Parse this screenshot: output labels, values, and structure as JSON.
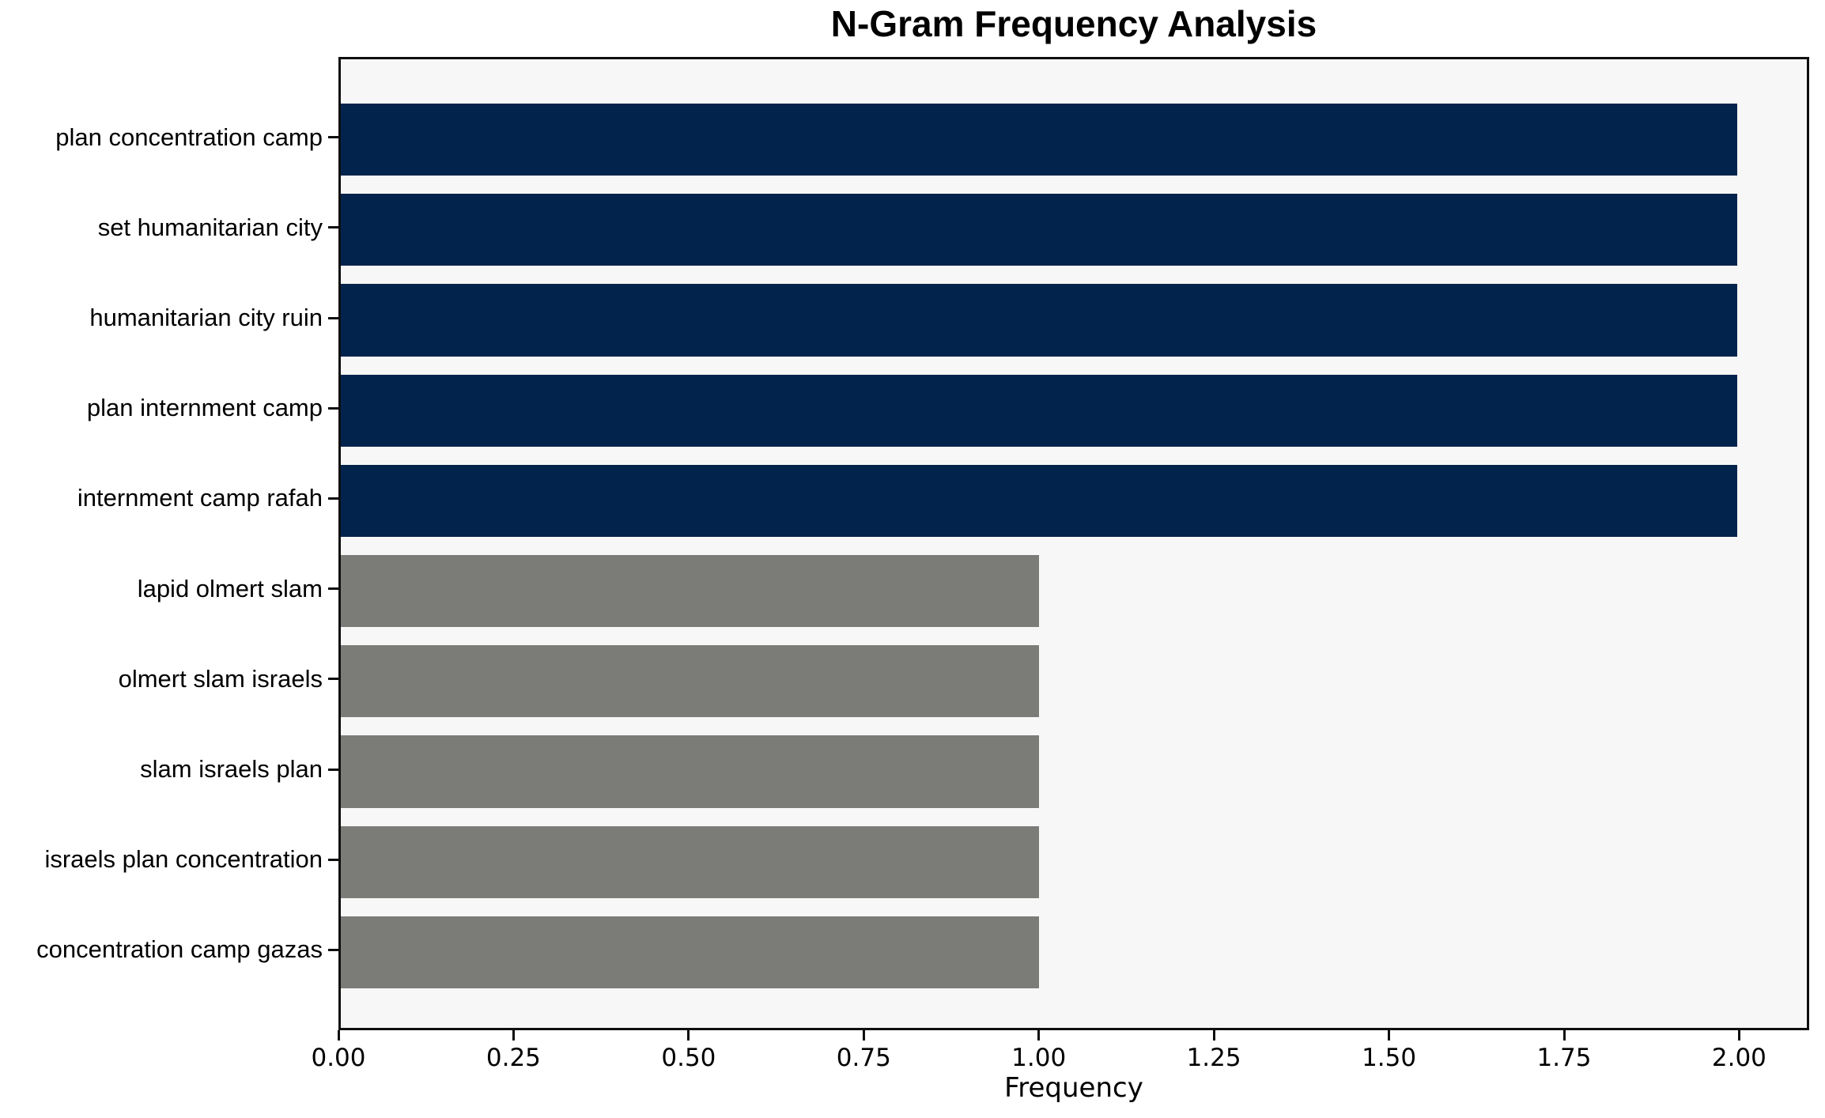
{
  "chart_data": {
    "type": "bar",
    "orientation": "horizontal",
    "title": "N-Gram Frequency Analysis",
    "xlabel": "Frequency",
    "ylabel": "",
    "categories": [
      "plan concentration camp",
      "set humanitarian city",
      "humanitarian city ruin",
      "plan internment camp",
      "internment camp rafah",
      "lapid olmert slam",
      "olmert slam israels",
      "slam israels plan",
      "israels plan concentration",
      "concentration camp gazas"
    ],
    "values": [
      2,
      2,
      2,
      2,
      2,
      1,
      1,
      1,
      1,
      1
    ],
    "bar_colors": [
      "#02234c",
      "#02234c",
      "#02234c",
      "#02234c",
      "#02234c",
      "#7b7b78",
      "#7b7b78",
      "#7b7b78",
      "#7b7b78",
      "#7b7b78"
    ],
    "xlim": [
      0,
      2.1
    ],
    "xticks": [
      0,
      0.25,
      0.5,
      0.75,
      1.0,
      1.25,
      1.5,
      1.75,
      2.0
    ],
    "xtick_labels": [
      "0.00",
      "0.25",
      "0.50",
      "0.75",
      "1.00",
      "1.25",
      "1.50",
      "1.75",
      "2.00"
    ],
    "grid": false,
    "legend": null,
    "colors": {
      "high_freq_bar": "#02234c",
      "low_freq_bar": "#7b7b78",
      "plot_background": "#f7f7f7",
      "figure_background": "#ffffff",
      "spine": "#0f0f0f",
      "text": "#000000"
    }
  }
}
